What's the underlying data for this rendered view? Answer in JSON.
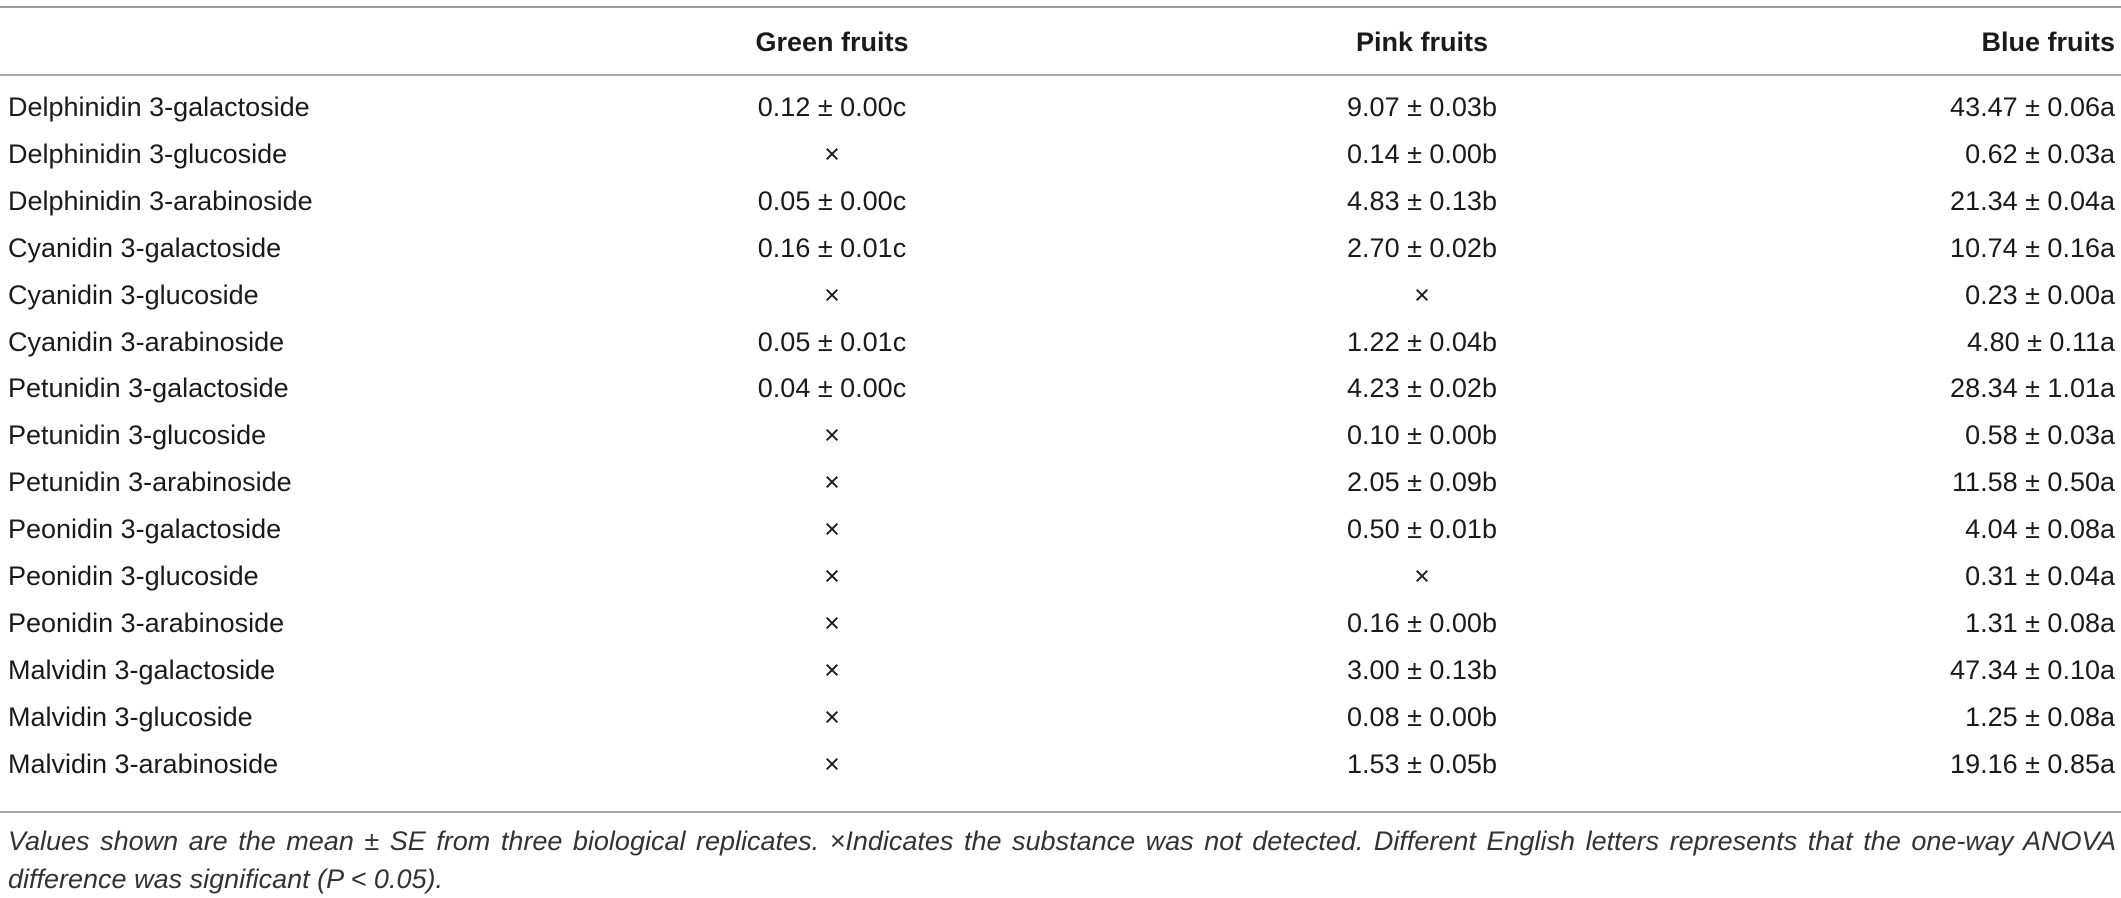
{
  "table": {
    "headers": {
      "name": "",
      "green": "Green fruits",
      "pink": "Pink fruits",
      "blue": "Blue fruits"
    },
    "rows": [
      {
        "name": "Delphinidin 3-galactoside",
        "green": "0.12 ± 0.00c",
        "pink": "9.07 ± 0.03b",
        "blue": "43.47 ± 0.06a"
      },
      {
        "name": "Delphinidin 3-glucoside",
        "green": "×",
        "pink": "0.14 ± 0.00b",
        "blue": "0.62 ± 0.03a"
      },
      {
        "name": "Delphinidin 3-arabinoside",
        "green": "0.05 ± 0.00c",
        "pink": "4.83 ± 0.13b",
        "blue": "21.34 ± 0.04a"
      },
      {
        "name": "Cyanidin 3-galactoside",
        "green": "0.16 ± 0.01c",
        "pink": "2.70 ± 0.02b",
        "blue": "10.74 ± 0.16a"
      },
      {
        "name": "Cyanidin 3-glucoside",
        "green": "×",
        "pink": "×",
        "blue": "0.23 ± 0.00a"
      },
      {
        "name": "Cyanidin 3-arabinoside",
        "green": "0.05 ± 0.01c",
        "pink": "1.22 ± 0.04b",
        "blue": "4.80 ± 0.11a"
      },
      {
        "name": "Petunidin 3-galactoside",
        "green": "0.04 ± 0.00c",
        "pink": "4.23 ± 0.02b",
        "blue": "28.34 ± 1.01a"
      },
      {
        "name": "Petunidin 3-glucoside",
        "green": "×",
        "pink": "0.10 ± 0.00b",
        "blue": "0.58 ± 0.03a"
      },
      {
        "name": "Petunidin 3-arabinoside",
        "green": "×",
        "pink": "2.05 ± 0.09b",
        "blue": "11.58 ± 0.50a"
      },
      {
        "name": "Peonidin 3-galactoside",
        "green": "×",
        "pink": "0.50 ± 0.01b",
        "blue": "4.04 ± 0.08a"
      },
      {
        "name": "Peonidin 3-glucoside",
        "green": "×",
        "pink": "×",
        "blue": "0.31 ± 0.04a"
      },
      {
        "name": "Peonidin 3-arabinoside",
        "green": "×",
        "pink": "0.16 ± 0.00b",
        "blue": "1.31 ± 0.08a"
      },
      {
        "name": "Malvidin 3-galactoside",
        "green": "×",
        "pink": "3.00 ± 0.13b",
        "blue": "47.34 ± 0.10a"
      },
      {
        "name": "Malvidin 3-glucoside",
        "green": "×",
        "pink": "0.08 ± 0.00b",
        "blue": "1.25 ± 0.08a"
      },
      {
        "name": "Malvidin 3-arabinoside",
        "green": "×",
        "pink": "1.53 ± 0.05b",
        "blue": "19.16 ± 0.85a"
      }
    ]
  },
  "footnote": "Values shown are the mean ± SE from three biological replicates. ×Indicates the substance was not detected. Different English letters represents that the one-way ANOVA difference was significant (P < 0.05)."
}
